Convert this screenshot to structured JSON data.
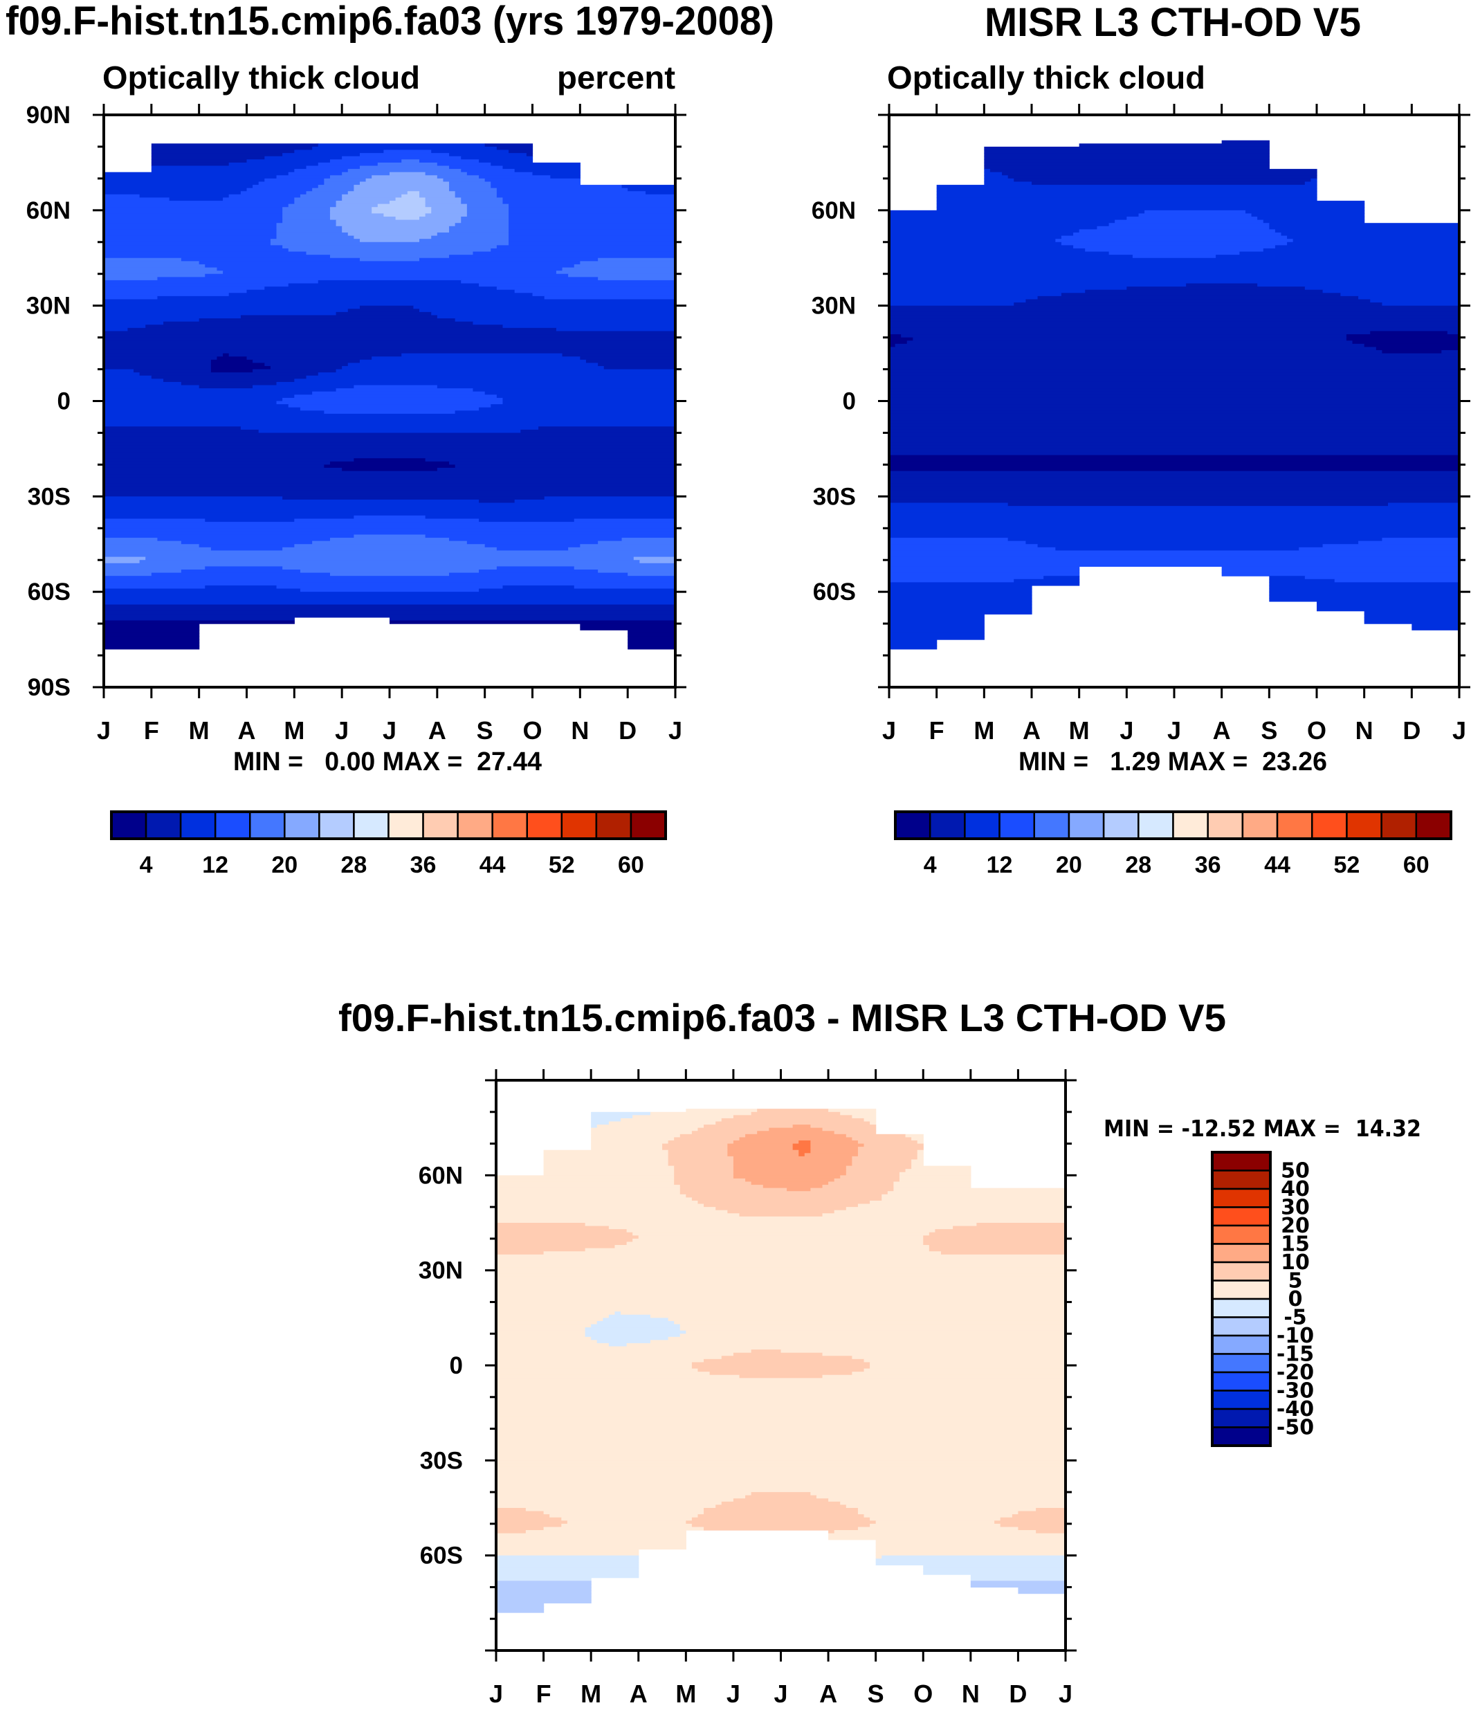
{
  "palette": [
    "#00008B",
    "#0019B0",
    "#0030DF",
    "#1A4DFF",
    "#4477FF",
    "#85A9FF",
    "#B4CCFF",
    "#D6E9FF",
    "#FFEBD9",
    "#FFCCB2",
    "#FFAA85",
    "#FF7744",
    "#FF4F1C",
    "#E03400",
    "#B02000",
    "#8B0000"
  ],
  "chart_data": [
    {
      "type": "heatmap",
      "title": "f09.F-hist.tn15.cmip6.fa03 (yrs 1979-2008)",
      "subtitle_left": "Optically thick cloud",
      "subtitle_right": "percent",
      "x_ticks": [
        "J",
        "F",
        "M",
        "A",
        "M",
        "J",
        "J",
        "A",
        "S",
        "O",
        "N",
        "D",
        "J"
      ],
      "y_ticks": [
        "90N",
        "60N",
        "30N",
        "0",
        "30S",
        "60S",
        "90S"
      ],
      "y_tick_values": [
        90,
        60,
        30,
        0,
        -30,
        -60,
        -90
      ],
      "xlim": [
        0,
        12
      ],
      "ylim": [
        -90,
        90
      ],
      "stats": "MIN =   0.00 MAX =  27.44",
      "levels": [
        4,
        8,
        12,
        16,
        20,
        24,
        28,
        32,
        36,
        40,
        44,
        48,
        52,
        56,
        60
      ],
      "colorbar_labels": [
        "4",
        "12",
        "20",
        "28",
        "36",
        "44",
        "52",
        "60"
      ],
      "field_lats": [
        80,
        70,
        60,
        50,
        40,
        30,
        20,
        10,
        0,
        -10,
        -20,
        -30,
        -40,
        -50,
        -60,
        -70,
        -80
      ],
      "field": [
        [
          5,
          5,
          5,
          6,
          8,
          10,
          11,
          9,
          7,
          5,
          5,
          5
        ],
        [
          11,
          10,
          10,
          12,
          15,
          20,
          23,
          18,
          14,
          12,
          12,
          11
        ],
        [
          13,
          13,
          13,
          15,
          19,
          24,
          26,
          21,
          16,
          14,
          13,
          13
        ],
        [
          15,
          15,
          15,
          16,
          18,
          20,
          20,
          18,
          16,
          15,
          15,
          15
        ],
        [
          17,
          17,
          16,
          14,
          13,
          13,
          13,
          13,
          14,
          16,
          17,
          17
        ],
        [
          11,
          10,
          10,
          9,
          9,
          8,
          8,
          9,
          10,
          11,
          11,
          11
        ],
        [
          7,
          6,
          5,
          5,
          6,
          6,
          7,
          7,
          7,
          7,
          7,
          7
        ],
        [
          8,
          6,
          3,
          4,
          7,
          9,
          9,
          9,
          9,
          9,
          8,
          8
        ],
        [
          11,
          11,
          11,
          12,
          14,
          15,
          15,
          14,
          12,
          11,
          11,
          11
        ],
        [
          7,
          7,
          7,
          8,
          8,
          8,
          8,
          8,
          8,
          7,
          7,
          7
        ],
        [
          6,
          6,
          6,
          5,
          4,
          3,
          3,
          4,
          5,
          6,
          6,
          6
        ],
        [
          8,
          8,
          8,
          8,
          7,
          7,
          7,
          7,
          7,
          8,
          8,
          8
        ],
        [
          14,
          14,
          13,
          13,
          14,
          15,
          15,
          14,
          13,
          13,
          14,
          14
        ],
        [
          21,
          19,
          17,
          17,
          19,
          20,
          20,
          19,
          17,
          17,
          19,
          21
        ],
        [
          11,
          11,
          11,
          11,
          12,
          12,
          12,
          12,
          11,
          11,
          11,
          11
        ],
        [
          3,
          3,
          3,
          3,
          3,
          3,
          3,
          3,
          3,
          3,
          3,
          3
        ],
        [
          2,
          2,
          2,
          2,
          2,
          2,
          2,
          2,
          2,
          2,
          2,
          2
        ]
      ],
      "north_limit": [
        72,
        81,
        81,
        81,
        81,
        81,
        81,
        81,
        81,
        75,
        68,
        68
      ],
      "south_limit": [
        -78,
        -78,
        -70,
        -70,
        -68,
        -68,
        -70,
        -70,
        -70,
        -70,
        -72,
        -78
      ]
    },
    {
      "type": "heatmap",
      "title": "MISR L3 CTH-OD V5",
      "subtitle_left": "Optically thick cloud",
      "x_ticks": [
        "J",
        "F",
        "M",
        "A",
        "M",
        "J",
        "J",
        "A",
        "S",
        "O",
        "N",
        "D",
        "J"
      ],
      "y_ticks": [
        "60N",
        "30N",
        "0",
        "30S",
        "60S"
      ],
      "y_tick_values": [
        60,
        30,
        0,
        -30,
        -60
      ],
      "xlim": [
        0,
        12
      ],
      "ylim": [
        -90,
        90
      ],
      "stats": "MIN =   1.29 MAX =  23.26",
      "levels": [
        4,
        8,
        12,
        16,
        20,
        24,
        28,
        32,
        36,
        40,
        44,
        48,
        52,
        56,
        60
      ],
      "colorbar_labels": [
        "4",
        "12",
        "20",
        "28",
        "36",
        "44",
        "52",
        "60"
      ],
      "field_lats": [
        80,
        70,
        60,
        50,
        40,
        30,
        20,
        10,
        0,
        -10,
        -20,
        -30,
        -40,
        -50,
        -60,
        -70,
        -80
      ],
      "field": [
        [
          6,
          6,
          6,
          6,
          5,
          5,
          5,
          5,
          6,
          6,
          6,
          6
        ],
        [
          10,
          10,
          8,
          7,
          7,
          7,
          7,
          7,
          7,
          9,
          10,
          10
        ],
        [
          11,
          11,
          11,
          11,
          11,
          12,
          12,
          12,
          11,
          11,
          11,
          11
        ],
        [
          12,
          12,
          12,
          12,
          13,
          14,
          14,
          13,
          12,
          12,
          12,
          12
        ],
        [
          10,
          10,
          10,
          10,
          10,
          10,
          10,
          10,
          10,
          10,
          10,
          10
        ],
        [
          8,
          8,
          8,
          7,
          6,
          5,
          4,
          4,
          5,
          7,
          8,
          8
        ],
        [
          4,
          4,
          4,
          4,
          5,
          6,
          6,
          6,
          5,
          4,
          3,
          3
        ],
        [
          5,
          5,
          5,
          5,
          6,
          6,
          7,
          7,
          7,
          6,
          5,
          5
        ],
        [
          8,
          8,
          8,
          8,
          8,
          8,
          8,
          8,
          8,
          8,
          8,
          8
        ],
        [
          6,
          6,
          6,
          6,
          6,
          6,
          6,
          6,
          6,
          6,
          6,
          6
        ],
        [
          3,
          3,
          3,
          3,
          3,
          3,
          3,
          3,
          3,
          3,
          3,
          3
        ],
        [
          7,
          7,
          7,
          7,
          7,
          7,
          7,
          7,
          7,
          7,
          7,
          7
        ],
        [
          11,
          11,
          11,
          10,
          10,
          10,
          10,
          10,
          10,
          10,
          11,
          11
        ],
        [
          14,
          14,
          14,
          13,
          13,
          13,
          13,
          13,
          13,
          14,
          14,
          14
        ],
        [
          11,
          11,
          11,
          11,
          11,
          11,
          11,
          11,
          11,
          11,
          11,
          11
        ],
        [
          9,
          9,
          9,
          9,
          9,
          9,
          9,
          9,
          9,
          9,
          9,
          9
        ],
        [
          8,
          8,
          8,
          8,
          8,
          8,
          8,
          8,
          8,
          8,
          8,
          8
        ]
      ],
      "north_limit": [
        60,
        68,
        80,
        80,
        81,
        81,
        81,
        82,
        73,
        63,
        56,
        56
      ],
      "south_limit": [
        -78,
        -75,
        -67,
        -58,
        -52,
        -52,
        -52,
        -55,
        -63,
        -66,
        -70,
        -72
      ]
    },
    {
      "type": "heatmap",
      "title": "f09.F-hist.tn15.cmip6.fa03 - MISR L3 CTH-OD V5",
      "derived_from": "difference of panel 1 and panel 2",
      "x_ticks": [
        "J",
        "F",
        "M",
        "A",
        "M",
        "J",
        "J",
        "A",
        "S",
        "O",
        "N",
        "D",
        "J"
      ],
      "y_ticks": [
        "60N",
        "30N",
        "0",
        "30S",
        "60S"
      ],
      "y_tick_values": [
        60,
        30,
        0,
        -30,
        -60
      ],
      "xlim": [
        0,
        12
      ],
      "ylim": [
        -90,
        90
      ],
      "stats": "MIN = -12.52 MAX =  14.32",
      "levels": [
        -50,
        -40,
        -30,
        -20,
        -15,
        -10,
        -5,
        0,
        5,
        10,
        15,
        20,
        30,
        40,
        50
      ],
      "colorbar_labels": [
        "50",
        "40",
        "30",
        "20",
        "15",
        "10",
        "5",
        "0",
        "-5",
        "-10",
        "-15",
        "-20",
        "-30",
        "-40",
        "-50"
      ]
    }
  ]
}
